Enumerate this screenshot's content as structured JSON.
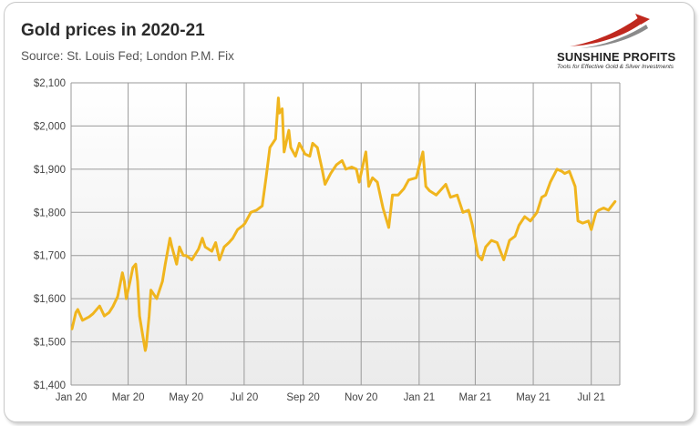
{
  "title": "Gold prices in 2020-21",
  "subtitle": "Source: St. Louis Fed; London P.M. Fix",
  "logo": {
    "name": "SUNSHINE PROFITS",
    "tagline": "Tools for Effective Gold & Silver Investments"
  },
  "colors": {
    "line": "#f0b51e",
    "grid": "#9a9a9a",
    "plot_bg_top": "#ffffff",
    "plot_bg_bottom": "#ebebeb",
    "logo_red": "#c0281e"
  },
  "chart_data": {
    "type": "line",
    "title": "Gold prices in 2020-21",
    "subtitle": "Source: St. Louis Fed; London P.M. Fix",
    "xlabel": "",
    "ylabel": "",
    "ylim": [
      1400,
      2100
    ],
    "xlim": [
      "2020-01-01",
      "2021-07-31"
    ],
    "y_ticks": [
      1400,
      1500,
      1600,
      1700,
      1800,
      1900,
      2000,
      2100
    ],
    "y_tick_labels": [
      "$1,400",
      "$1,500",
      "$1,600",
      "$1,700",
      "$1,800",
      "$1,900",
      "$2,000",
      "$2,100"
    ],
    "x_tick_labels": [
      {
        "date": "2020-01-01",
        "label": "Jan 20"
      },
      {
        "date": "2020-03-01",
        "label": "Mar 20"
      },
      {
        "date": "2020-05-01",
        "label": "May 20"
      },
      {
        "date": "2020-07-01",
        "label": "Jul 20"
      },
      {
        "date": "2020-09-01",
        "label": "Sep 20"
      },
      {
        "date": "2020-11-01",
        "label": "Nov 20"
      },
      {
        "date": "2021-01-01",
        "label": "Jan 21"
      },
      {
        "date": "2021-03-01",
        "label": "Mar 21"
      },
      {
        "date": "2021-05-01",
        "label": "May 21"
      },
      {
        "date": "2021-07-01",
        "label": "Jul 21"
      }
    ],
    "grid": true,
    "series": [
      {
        "color": "#f0b51e",
        "points": [
          [
            "2020-01-02",
            1530
          ],
          [
            "2020-01-06",
            1568
          ],
          [
            "2020-01-08",
            1575
          ],
          [
            "2020-01-13",
            1550
          ],
          [
            "2020-01-20",
            1558
          ],
          [
            "2020-01-24",
            1565
          ],
          [
            "2020-01-31",
            1583
          ],
          [
            "2020-02-05",
            1560
          ],
          [
            "2020-02-10",
            1568
          ],
          [
            "2020-02-14",
            1582
          ],
          [
            "2020-02-19",
            1605
          ],
          [
            "2020-02-24",
            1660
          ],
          [
            "2020-02-26",
            1640
          ],
          [
            "2020-02-28",
            1600
          ],
          [
            "2020-03-03",
            1640
          ],
          [
            "2020-03-06",
            1672
          ],
          [
            "2020-03-09",
            1680
          ],
          [
            "2020-03-11",
            1640
          ],
          [
            "2020-03-13",
            1560
          ],
          [
            "2020-03-16",
            1520
          ],
          [
            "2020-03-19",
            1480
          ],
          [
            "2020-03-20",
            1490
          ],
          [
            "2020-03-23",
            1560
          ],
          [
            "2020-03-25",
            1620
          ],
          [
            "2020-03-31",
            1600
          ],
          [
            "2020-04-06",
            1640
          ],
          [
            "2020-04-09",
            1680
          ],
          [
            "2020-04-14",
            1740
          ],
          [
            "2020-04-16",
            1720
          ],
          [
            "2020-04-21",
            1680
          ],
          [
            "2020-04-24",
            1720
          ],
          [
            "2020-04-28",
            1700
          ],
          [
            "2020-05-01",
            1700
          ],
          [
            "2020-05-07",
            1690
          ],
          [
            "2020-05-14",
            1715
          ],
          [
            "2020-05-18",
            1740
          ],
          [
            "2020-05-21",
            1720
          ],
          [
            "2020-05-28",
            1710
          ],
          [
            "2020-06-01",
            1730
          ],
          [
            "2020-06-05",
            1690
          ],
          [
            "2020-06-10",
            1720
          ],
          [
            "2020-06-15",
            1730
          ],
          [
            "2020-06-19",
            1740
          ],
          [
            "2020-06-24",
            1760
          ],
          [
            "2020-06-30",
            1770
          ],
          [
            "2020-07-02",
            1775
          ],
          [
            "2020-07-08",
            1800
          ],
          [
            "2020-07-14",
            1805
          ],
          [
            "2020-07-20",
            1815
          ],
          [
            "2020-07-24",
            1880
          ],
          [
            "2020-07-28",
            1950
          ],
          [
            "2020-08-03",
            1970
          ],
          [
            "2020-08-06",
            2065
          ],
          [
            "2020-08-07",
            2030
          ],
          [
            "2020-08-10",
            2040
          ],
          [
            "2020-08-12",
            1940
          ],
          [
            "2020-08-17",
            1990
          ],
          [
            "2020-08-19",
            1950
          ],
          [
            "2020-08-24",
            1930
          ],
          [
            "2020-08-28",
            1960
          ],
          [
            "2020-09-03",
            1935
          ],
          [
            "2020-09-08",
            1930
          ],
          [
            "2020-09-11",
            1960
          ],
          [
            "2020-09-16",
            1950
          ],
          [
            "2020-09-21",
            1900
          ],
          [
            "2020-09-24",
            1865
          ],
          [
            "2020-09-30",
            1890
          ],
          [
            "2020-10-06",
            1910
          ],
          [
            "2020-10-12",
            1920
          ],
          [
            "2020-10-16",
            1900
          ],
          [
            "2020-10-22",
            1905
          ],
          [
            "2020-10-27",
            1900
          ],
          [
            "2020-10-30",
            1870
          ],
          [
            "2020-11-06",
            1940
          ],
          [
            "2020-11-09",
            1860
          ],
          [
            "2020-11-13",
            1880
          ],
          [
            "2020-11-18",
            1870
          ],
          [
            "2020-11-24",
            1810
          ],
          [
            "2020-11-30",
            1765
          ],
          [
            "2020-12-04",
            1840
          ],
          [
            "2020-12-10",
            1840
          ],
          [
            "2020-12-16",
            1855
          ],
          [
            "2020-12-21",
            1875
          ],
          [
            "2020-12-29",
            1880
          ],
          [
            "2021-01-05",
            1940
          ],
          [
            "2021-01-08",
            1860
          ],
          [
            "2021-01-12",
            1850
          ],
          [
            "2021-01-19",
            1840
          ],
          [
            "2021-01-25",
            1855
          ],
          [
            "2021-01-29",
            1865
          ],
          [
            "2021-02-03",
            1835
          ],
          [
            "2021-02-10",
            1840
          ],
          [
            "2021-02-16",
            1800
          ],
          [
            "2021-02-22",
            1805
          ],
          [
            "2021-02-26",
            1770
          ],
          [
            "2021-03-04",
            1700
          ],
          [
            "2021-03-08",
            1690
          ],
          [
            "2021-03-12",
            1720
          ],
          [
            "2021-03-18",
            1735
          ],
          [
            "2021-03-24",
            1730
          ],
          [
            "2021-03-31",
            1690
          ],
          [
            "2021-04-06",
            1735
          ],
          [
            "2021-04-12",
            1745
          ],
          [
            "2021-04-16",
            1770
          ],
          [
            "2021-04-22",
            1790
          ],
          [
            "2021-04-28",
            1780
          ],
          [
            "2021-05-05",
            1800
          ],
          [
            "2021-05-10",
            1835
          ],
          [
            "2021-05-14",
            1840
          ],
          [
            "2021-05-19",
            1870
          ],
          [
            "2021-05-26",
            1900
          ],
          [
            "2021-05-31",
            1895
          ],
          [
            "2021-06-03",
            1890
          ],
          [
            "2021-06-08",
            1895
          ],
          [
            "2021-06-14",
            1860
          ],
          [
            "2021-06-17",
            1780
          ],
          [
            "2021-06-22",
            1775
          ],
          [
            "2021-06-28",
            1780
          ],
          [
            "2021-07-01",
            1760
          ],
          [
            "2021-07-06",
            1800
          ],
          [
            "2021-07-09",
            1805
          ],
          [
            "2021-07-14",
            1810
          ],
          [
            "2021-07-19",
            1805
          ],
          [
            "2021-07-26",
            1825
          ]
        ]
      }
    ]
  }
}
